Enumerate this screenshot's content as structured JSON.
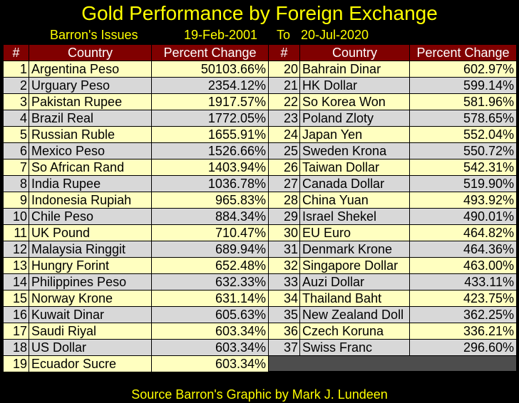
{
  "title": "Gold Performance by Foreign Exchange",
  "subtitle": {
    "source_label": "Barron's Issues",
    "start_date": "19-Feb-2001",
    "to_label": "To",
    "end_date": "20-Jul-2020"
  },
  "footer": "Source Barron's   Graphic by Mark J. Lundeen",
  "columns": {
    "rank": "#",
    "country": "Country",
    "change": "Percent Change"
  },
  "chart_data": {
    "type": "table",
    "title": "Gold Performance by Foreign Exchange",
    "columns": [
      "#",
      "Country",
      "Percent Change"
    ],
    "rows": [
      {
        "rank": 1,
        "country": "Argentina Peso",
        "change": "50103.66%"
      },
      {
        "rank": 2,
        "country": "Urguary Peso",
        "change": "2354.12%"
      },
      {
        "rank": 3,
        "country": "Pakistan Rupee",
        "change": "1917.57%"
      },
      {
        "rank": 4,
        "country": "Brazil Real",
        "change": "1772.05%"
      },
      {
        "rank": 5,
        "country": "Russian Ruble",
        "change": "1655.91%"
      },
      {
        "rank": 6,
        "country": "Mexico Peso",
        "change": "1526.66%"
      },
      {
        "rank": 7,
        "country": "So African Rand",
        "change": "1403.94%"
      },
      {
        "rank": 8,
        "country": "India Rupee",
        "change": "1036.78%"
      },
      {
        "rank": 9,
        "country": "Indonesia Rupiah",
        "change": "965.83%"
      },
      {
        "rank": 10,
        "country": "Chile Peso",
        "change": "884.34%"
      },
      {
        "rank": 11,
        "country": "UK Pound",
        "change": "710.47%"
      },
      {
        "rank": 12,
        "country": "Malaysia Ringgit",
        "change": "689.94%"
      },
      {
        "rank": 13,
        "country": "Hungry Forint",
        "change": "652.48%"
      },
      {
        "rank": 14,
        "country": "Philippines Peso",
        "change": "632.33%"
      },
      {
        "rank": 15,
        "country": "Norway Krone",
        "change": "631.14%"
      },
      {
        "rank": 16,
        "country": "Kuwait Dinar",
        "change": "605.63%"
      },
      {
        "rank": 17,
        "country": "Saudi Riyal",
        "change": "603.34%"
      },
      {
        "rank": 18,
        "country": "US Dollar",
        "change": "603.34%"
      },
      {
        "rank": 19,
        "country": "Ecuador Sucre",
        "change": "603.34%"
      },
      {
        "rank": 20,
        "country": "Bahrain Dinar",
        "change": "602.97%"
      },
      {
        "rank": 21,
        "country": "HK Dollar",
        "change": "599.14%"
      },
      {
        "rank": 22,
        "country": "So Korea Won",
        "change": "581.96%"
      },
      {
        "rank": 23,
        "country": "Poland Zloty",
        "change": "578.65%"
      },
      {
        "rank": 24,
        "country": "Japan Yen",
        "change": "552.04%"
      },
      {
        "rank": 25,
        "country": "Sweden Krona",
        "change": "550.72%"
      },
      {
        "rank": 26,
        "country": "Taiwan Dollar",
        "change": "542.31%"
      },
      {
        "rank": 27,
        "country": "Canada Dollar",
        "change": "519.90%"
      },
      {
        "rank": 28,
        "country": "China Yuan",
        "change": "493.92%"
      },
      {
        "rank": 29,
        "country": "Israel Shekel",
        "change": "490.01%"
      },
      {
        "rank": 30,
        "country": "EU Euro",
        "change": "464.82%"
      },
      {
        "rank": 31,
        "country": "Denmark Krone",
        "change": "464.36%"
      },
      {
        "rank": 32,
        "country": "Singapore Dollar",
        "change": "463.00%"
      },
      {
        "rank": 33,
        "country": "Auzi Dollar",
        "change": "433.11%"
      },
      {
        "rank": 34,
        "country": "Thailand Baht",
        "change": "423.75%"
      },
      {
        "rank": 35,
        "country": "New Zealand Doll",
        "change": "362.25%"
      },
      {
        "rank": 36,
        "country": "Czech Koruna",
        "change": "336.21%"
      },
      {
        "rank": 37,
        "country": "Swiss Franc",
        "change": "296.60%"
      }
    ]
  },
  "colors": {
    "title": "#ffff00",
    "header_bg": "#800000",
    "row_odd": "#ffffc0",
    "row_even": "#d8d8d8",
    "blank_cell": "#4d4d4d"
  }
}
